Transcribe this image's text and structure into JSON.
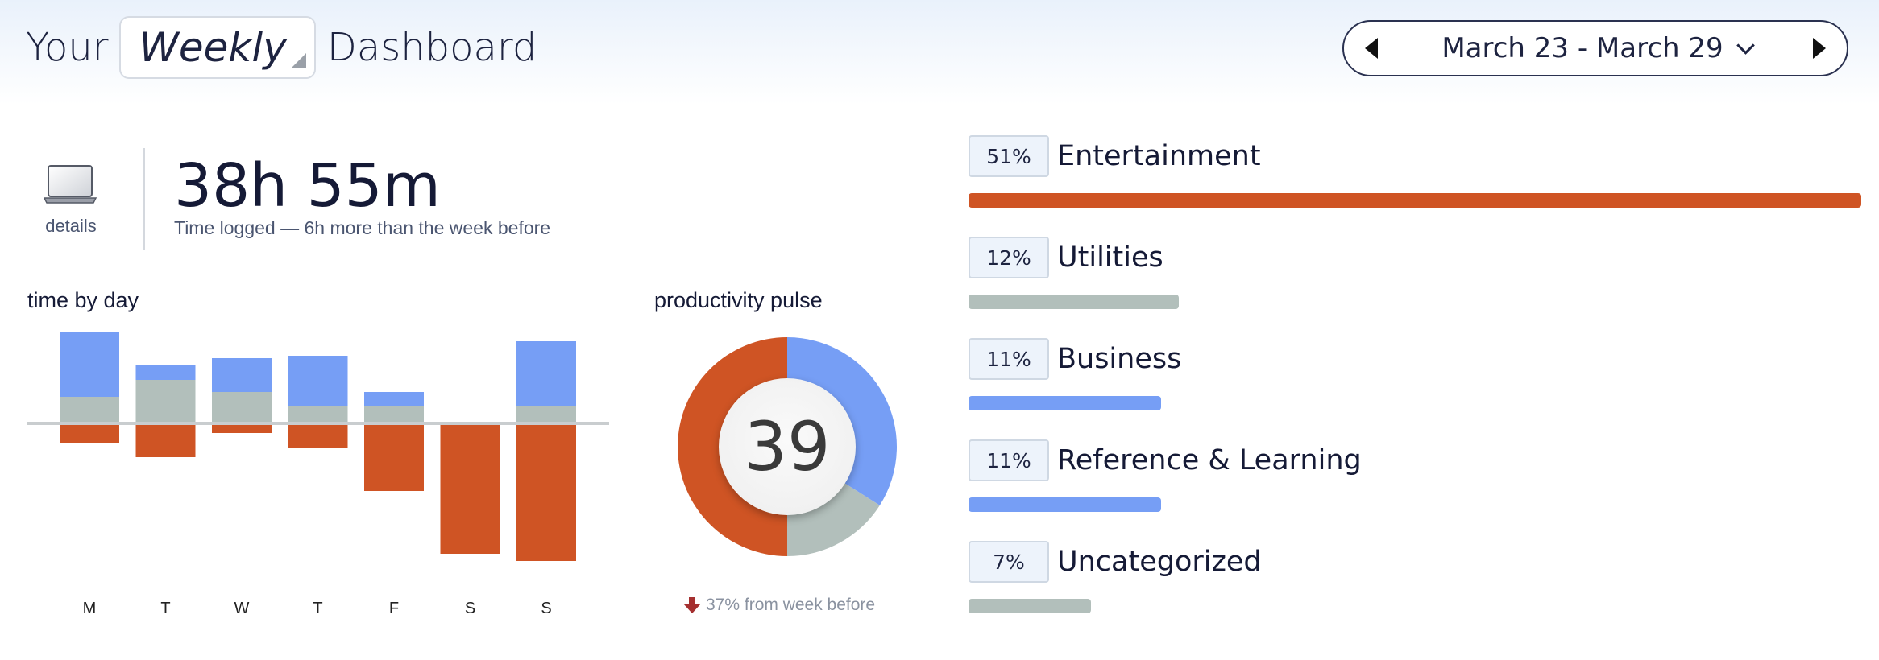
{
  "header": {
    "prefix": "Your",
    "period": "Weekly",
    "suffix": "Dashboard",
    "date_range": "March 23 - March 29"
  },
  "summary": {
    "details_label": "details",
    "total_time": "38h 55m",
    "subtitle": "Time logged — 6h more than the week before"
  },
  "time_by_day": {
    "title": "time by day"
  },
  "pulse": {
    "title": "productivity pulse",
    "score": "39",
    "change": "37% from week before"
  },
  "categories": [
    {
      "percent": "51%",
      "name": "Entertainment",
      "share": 51,
      "color": "#cf5424"
    },
    {
      "percent": "12%",
      "name": "Utilities",
      "share": 12,
      "color": "#b2bfbb"
    },
    {
      "percent": "11%",
      "name": "Business",
      "share": 11,
      "color": "#769ef5"
    },
    {
      "percent": "11%",
      "name": "Reference & Learning",
      "share": 11,
      "color": "#769ef5"
    },
    {
      "percent": "7%",
      "name": "Uncategorized",
      "share": 7,
      "color": "#b2bfbb"
    }
  ],
  "colors": {
    "productive": "#769ef5",
    "neutral": "#b2bfbb",
    "distracting": "#cf5424"
  },
  "chart_data": [
    {
      "type": "bar",
      "stacked": true,
      "diverging": true,
      "categories": [
        "M",
        "T",
        "W",
        "T",
        "F",
        "S",
        "S"
      ],
      "series": [
        {
          "color": "#769ef5",
          "values": [
            2.7,
            0.6,
            1.4,
            2.1,
            0.6,
            0,
            2.7
          ]
        },
        {
          "color": "#b2bfbb",
          "values": [
            1.1,
            1.8,
            1.3,
            0.7,
            0.7,
            0,
            0.7
          ]
        },
        {
          "color": "#cf5424",
          "values": [
            -0.8,
            -1.4,
            -0.4,
            -1.0,
            -2.8,
            -5.4,
            -5.7
          ]
        }
      ],
      "grid": false
    },
    {
      "type": "pie",
      "donut": true,
      "slices": [
        {
          "color": "#769ef5",
          "value": 34
        },
        {
          "color": "#b2bfbb",
          "value": 16
        },
        {
          "color": "#cf5424",
          "value": 50
        }
      ]
    }
  ]
}
